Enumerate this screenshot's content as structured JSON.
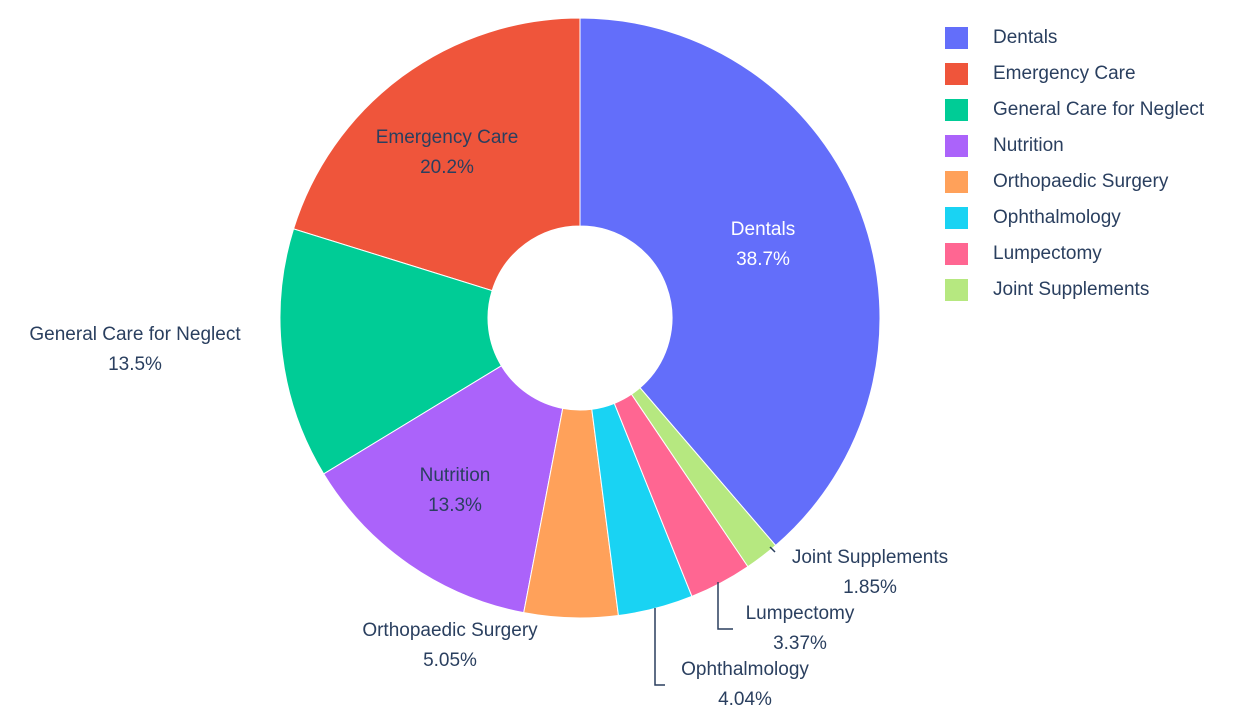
{
  "chart_data": {
    "type": "pie",
    "hole": true,
    "categories": [
      "Dentals",
      "Emergency Care",
      "General Care for Neglect",
      "Nutrition",
      "Orthopaedic Surgery",
      "Ophthalmology",
      "Lumpectomy",
      "Joint Supplements"
    ],
    "values": [
      38.7,
      20.2,
      13.5,
      13.3,
      5.05,
      4.04,
      3.37,
      1.85
    ],
    "value_labels": [
      "38.7%",
      "20.2%",
      "13.5%",
      "13.3%",
      "5.05%",
      "4.04%",
      "3.37%",
      "1.85%"
    ],
    "colors": [
      "#636efa",
      "#EF553B",
      "#00cc96",
      "#ab63fa",
      "#FFA15A",
      "#19d3f3",
      "#FF6692",
      "#B6E880"
    ],
    "legend": "top-right"
  }
}
